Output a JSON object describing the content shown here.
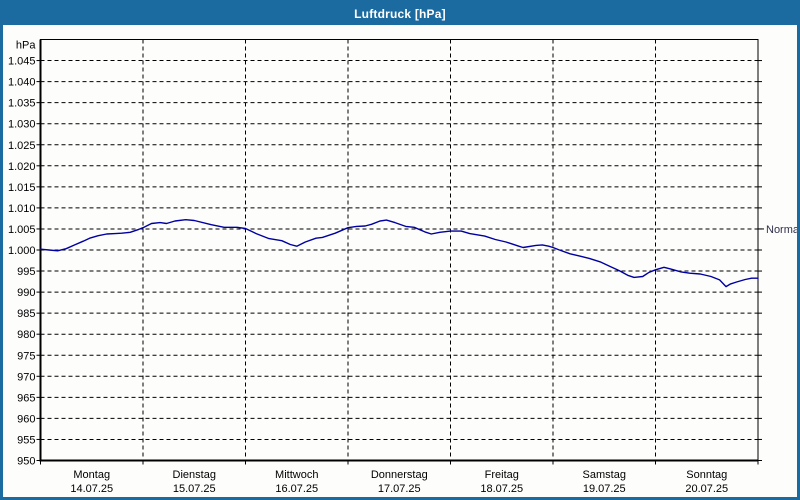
{
  "window": {
    "title": "Luftdruck [hPa]"
  },
  "colors": {
    "titlebar": "#1b6aa0",
    "window_border": "#1b6aa0",
    "plot_background": "#fdfdfc",
    "grid": "#000000",
    "line": "#0000a0",
    "label_text": "#000000"
  },
  "chart_data": {
    "type": "line",
    "title": "Luftdruck [hPa]",
    "grid": "dashed",
    "legend_position": "none",
    "y_axis": {
      "unit": "hPa",
      "min": 950,
      "max": 1050,
      "tick_step": 5,
      "tick_values": [
        1045,
        1040,
        1035,
        1030,
        1025,
        1020,
        1015,
        1010,
        1005,
        1000,
        995,
        990,
        985,
        980,
        975,
        970,
        965,
        960,
        955,
        950
      ],
      "tick_labels": [
        "1.045",
        "1.040",
        "1.035",
        "1.030",
        "1.025",
        "1.020",
        "1.015",
        "1.010",
        "1.005",
        "1.000",
        "995",
        "990",
        "985",
        "980",
        "975",
        "970",
        "965",
        "960",
        "955",
        "950"
      ]
    },
    "x_axis": {
      "hours_total": 168,
      "day_tick_hours": [
        0,
        24,
        48,
        72,
        96,
        120,
        144,
        168
      ],
      "days": [
        {
          "name": "Montag",
          "date": "14.07.25"
        },
        {
          "name": "Dienstag",
          "date": "15.07.25"
        },
        {
          "name": "Mittwoch",
          "date": "16.07.25"
        },
        {
          "name": "Donnerstag",
          "date": "17.07.25"
        },
        {
          "name": "Freitag",
          "date": "18.07.25"
        },
        {
          "name": "Samstag",
          "date": "19.07.25"
        },
        {
          "name": "Sonntag",
          "date": "20.07.25"
        }
      ]
    },
    "normal_marker": {
      "label": "Normal",
      "value": 1005
    },
    "series": [
      {
        "name": "Luftdruck",
        "color": "#0000a0",
        "points_hours_hpa": [
          [
            0,
            1000.2
          ],
          [
            2,
            1000.0
          ],
          [
            4,
            999.8
          ],
          [
            6,
            1000.3
          ],
          [
            8,
            1001.2
          ],
          [
            10,
            1002.1
          ],
          [
            11.5,
            1002.8
          ],
          [
            13.5,
            1003.4
          ],
          [
            15.5,
            1003.8
          ],
          [
            17.5,
            1003.9
          ],
          [
            19,
            1004.0
          ],
          [
            21,
            1004.2
          ],
          [
            23,
            1004.9
          ],
          [
            24,
            1005.3
          ],
          [
            26,
            1006.3
          ],
          [
            28,
            1006.5
          ],
          [
            29.5,
            1006.3
          ],
          [
            31.5,
            1006.9
          ],
          [
            34,
            1007.2
          ],
          [
            36,
            1007.0
          ],
          [
            40,
            1006.0
          ],
          [
            43,
            1005.4
          ],
          [
            46,
            1005.4
          ],
          [
            48,
            1005.1
          ],
          [
            50.5,
            1003.9
          ],
          [
            53.5,
            1002.7
          ],
          [
            56.5,
            1002.2
          ],
          [
            58.5,
            1001.3
          ],
          [
            60,
            1000.9
          ],
          [
            62,
            1001.9
          ],
          [
            64.5,
            1002.8
          ],
          [
            66,
            1003.0
          ],
          [
            69,
            1004.0
          ],
          [
            72,
            1005.3
          ],
          [
            74,
            1005.6
          ],
          [
            76,
            1005.7
          ],
          [
            77.5,
            1006.1
          ],
          [
            79.5,
            1006.9
          ],
          [
            81,
            1007.1
          ],
          [
            83,
            1006.5
          ],
          [
            85.5,
            1005.6
          ],
          [
            87.5,
            1005.4
          ],
          [
            90,
            1004.3
          ],
          [
            91.5,
            1003.8
          ],
          [
            93.5,
            1004.2
          ],
          [
            96,
            1004.5
          ],
          [
            98.5,
            1004.5
          ],
          [
            100.5,
            1003.9
          ],
          [
            104,
            1003.3
          ],
          [
            106.5,
            1002.5
          ],
          [
            109,
            1001.9
          ],
          [
            110.5,
            1001.4
          ],
          [
            112,
            1000.9
          ],
          [
            113,
            1000.6
          ],
          [
            116,
            1001.1
          ],
          [
            117.5,
            1001.2
          ],
          [
            119,
            1000.9
          ],
          [
            120,
            1000.6
          ],
          [
            121.5,
            1000.0
          ],
          [
            124,
            999.1
          ],
          [
            126.5,
            998.5
          ],
          [
            128.5,
            998.0
          ],
          [
            131,
            997.2
          ],
          [
            133.5,
            996.0
          ],
          [
            135.5,
            995.1
          ],
          [
            137.5,
            994.0
          ],
          [
            139,
            993.5
          ],
          [
            141,
            993.7
          ],
          [
            142.5,
            994.7
          ],
          [
            144,
            995.3
          ],
          [
            146,
            995.9
          ],
          [
            147.5,
            995.5
          ],
          [
            150,
            994.8
          ],
          [
            152,
            994.5
          ],
          [
            154.5,
            994.3
          ],
          [
            157,
            993.7
          ],
          [
            159,
            992.9
          ],
          [
            160.5,
            991.3
          ],
          [
            161.5,
            991.9
          ],
          [
            163,
            992.4
          ],
          [
            165,
            993.0
          ],
          [
            166.5,
            993.3
          ],
          [
            168,
            993.3
          ]
        ]
      }
    ]
  }
}
